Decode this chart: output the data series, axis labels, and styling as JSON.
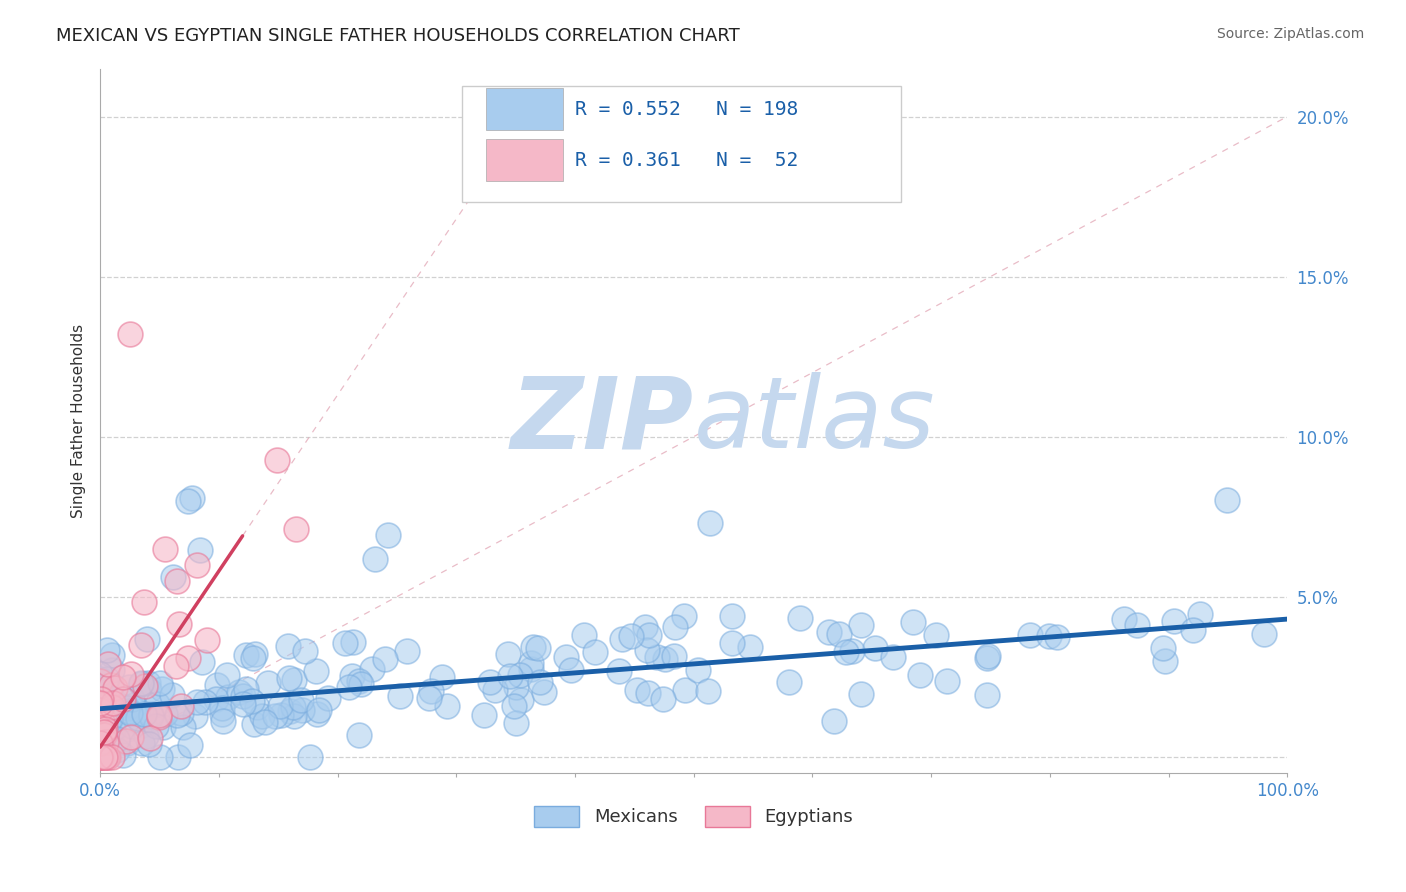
{
  "title": "MEXICAN VS EGYPTIAN SINGLE FATHER HOUSEHOLDS CORRELATION CHART",
  "source": "Source: ZipAtlas.com",
  "ylabel": "Single Father Households",
  "xlim": [
    0.0,
    1.0
  ],
  "ylim": [
    -0.005,
    0.215
  ],
  "yticks": [
    0.0,
    0.05,
    0.1,
    0.15,
    0.2
  ],
  "ytick_labels": [
    "",
    "5.0%",
    "10.0%",
    "15.0%",
    "20.0%"
  ],
  "xticks": [
    0.0,
    0.1,
    0.2,
    0.3,
    0.4,
    0.5,
    0.6,
    0.7,
    0.8,
    0.9,
    1.0
  ],
  "xtick_labels": [
    "0.0%",
    "",
    "",
    "",
    "",
    "",
    "",
    "",
    "",
    "",
    "100.0%"
  ],
  "blue_color": "#a8ccee",
  "blue_edge_color": "#7aacde",
  "pink_color": "#f5b8c8",
  "pink_edge_color": "#e87898",
  "blue_line_color": "#1a5fa8",
  "pink_line_color": "#d04060",
  "diag_line_color": "#e0a0b0",
  "grid_color": "#cccccc",
  "tick_color": "#4488cc",
  "R_blue": 0.552,
  "N_blue": 198,
  "R_pink": 0.361,
  "N_pink": 52,
  "legend_text_color": "#1a5fa8",
  "watermark_zip": "ZIP",
  "watermark_atlas": "atlas",
  "watermark_color": "#c5d8ee",
  "title_fontsize": 13,
  "axis_label_fontsize": 11,
  "tick_fontsize": 12,
  "legend_fontsize": 14,
  "source_fontsize": 10,
  "blue_seed": 42,
  "pink_seed": 7,
  "blue_intercept": 0.015,
  "blue_slope": 0.028,
  "pink_intercept": 0.003,
  "pink_slope": 0.55,
  "pink_line_x_end": 0.12
}
